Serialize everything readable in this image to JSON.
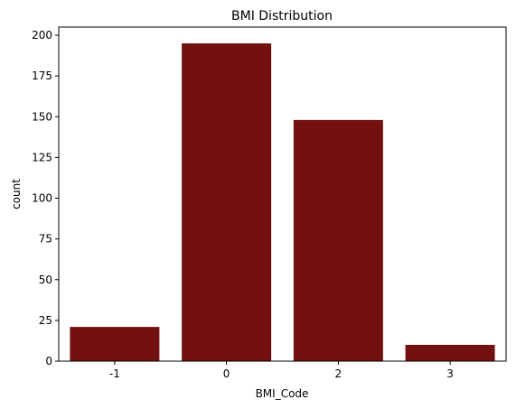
{
  "chart_data": {
    "type": "bar",
    "title": "BMI Distribution",
    "xlabel": "BMI_Code",
    "ylabel": "count",
    "categories": [
      "-1",
      "0",
      "2",
      "3"
    ],
    "values": [
      21,
      195,
      148,
      10
    ],
    "ylim": [
      0,
      205
    ],
    "yticks": [
      0,
      25,
      50,
      75,
      100,
      125,
      150,
      175,
      200
    ],
    "bar_color": "#731010",
    "grid": false,
    "legend": "none"
  }
}
